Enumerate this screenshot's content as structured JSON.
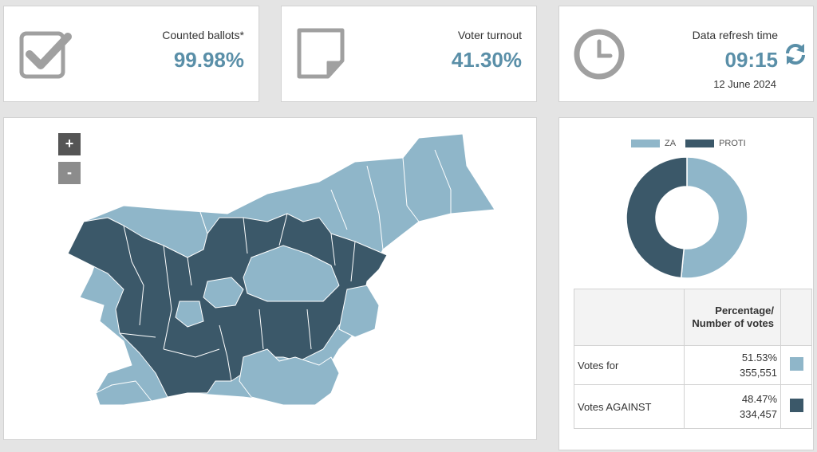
{
  "cards": {
    "counted": {
      "label": "Counted ballots*",
      "value": "99.98%",
      "icon": "checkbox-icon"
    },
    "turnout": {
      "label": "Voter turnout",
      "value": "41.30%",
      "icon": "document-icon"
    },
    "refresh": {
      "label": "Data refresh time",
      "value": "09:15",
      "date": "12 June 2024",
      "icon": "clock-icon",
      "refresh_icon": "refresh-icon"
    }
  },
  "map": {
    "zoom_in": "+",
    "zoom_out": "-"
  },
  "colors": {
    "accent": "#5a8fa8",
    "for": "#8fb6c9",
    "against": "#3b5869"
  },
  "results": {
    "legend": {
      "za": "ZA",
      "proti": "PROTI"
    },
    "header": "Percentage/ Number of votes",
    "rows": [
      {
        "label": "Votes for",
        "percent": "51.53%",
        "count": "355,551"
      },
      {
        "label": "Votes AGAINST",
        "percent": "48.47%",
        "count": "334,457"
      }
    ]
  },
  "chart_data": {
    "type": "pie",
    "categories": [
      "ZA",
      "PROTI"
    ],
    "values": [
      51.53,
      48.47
    ],
    "counts": [
      355551,
      334457
    ]
  }
}
